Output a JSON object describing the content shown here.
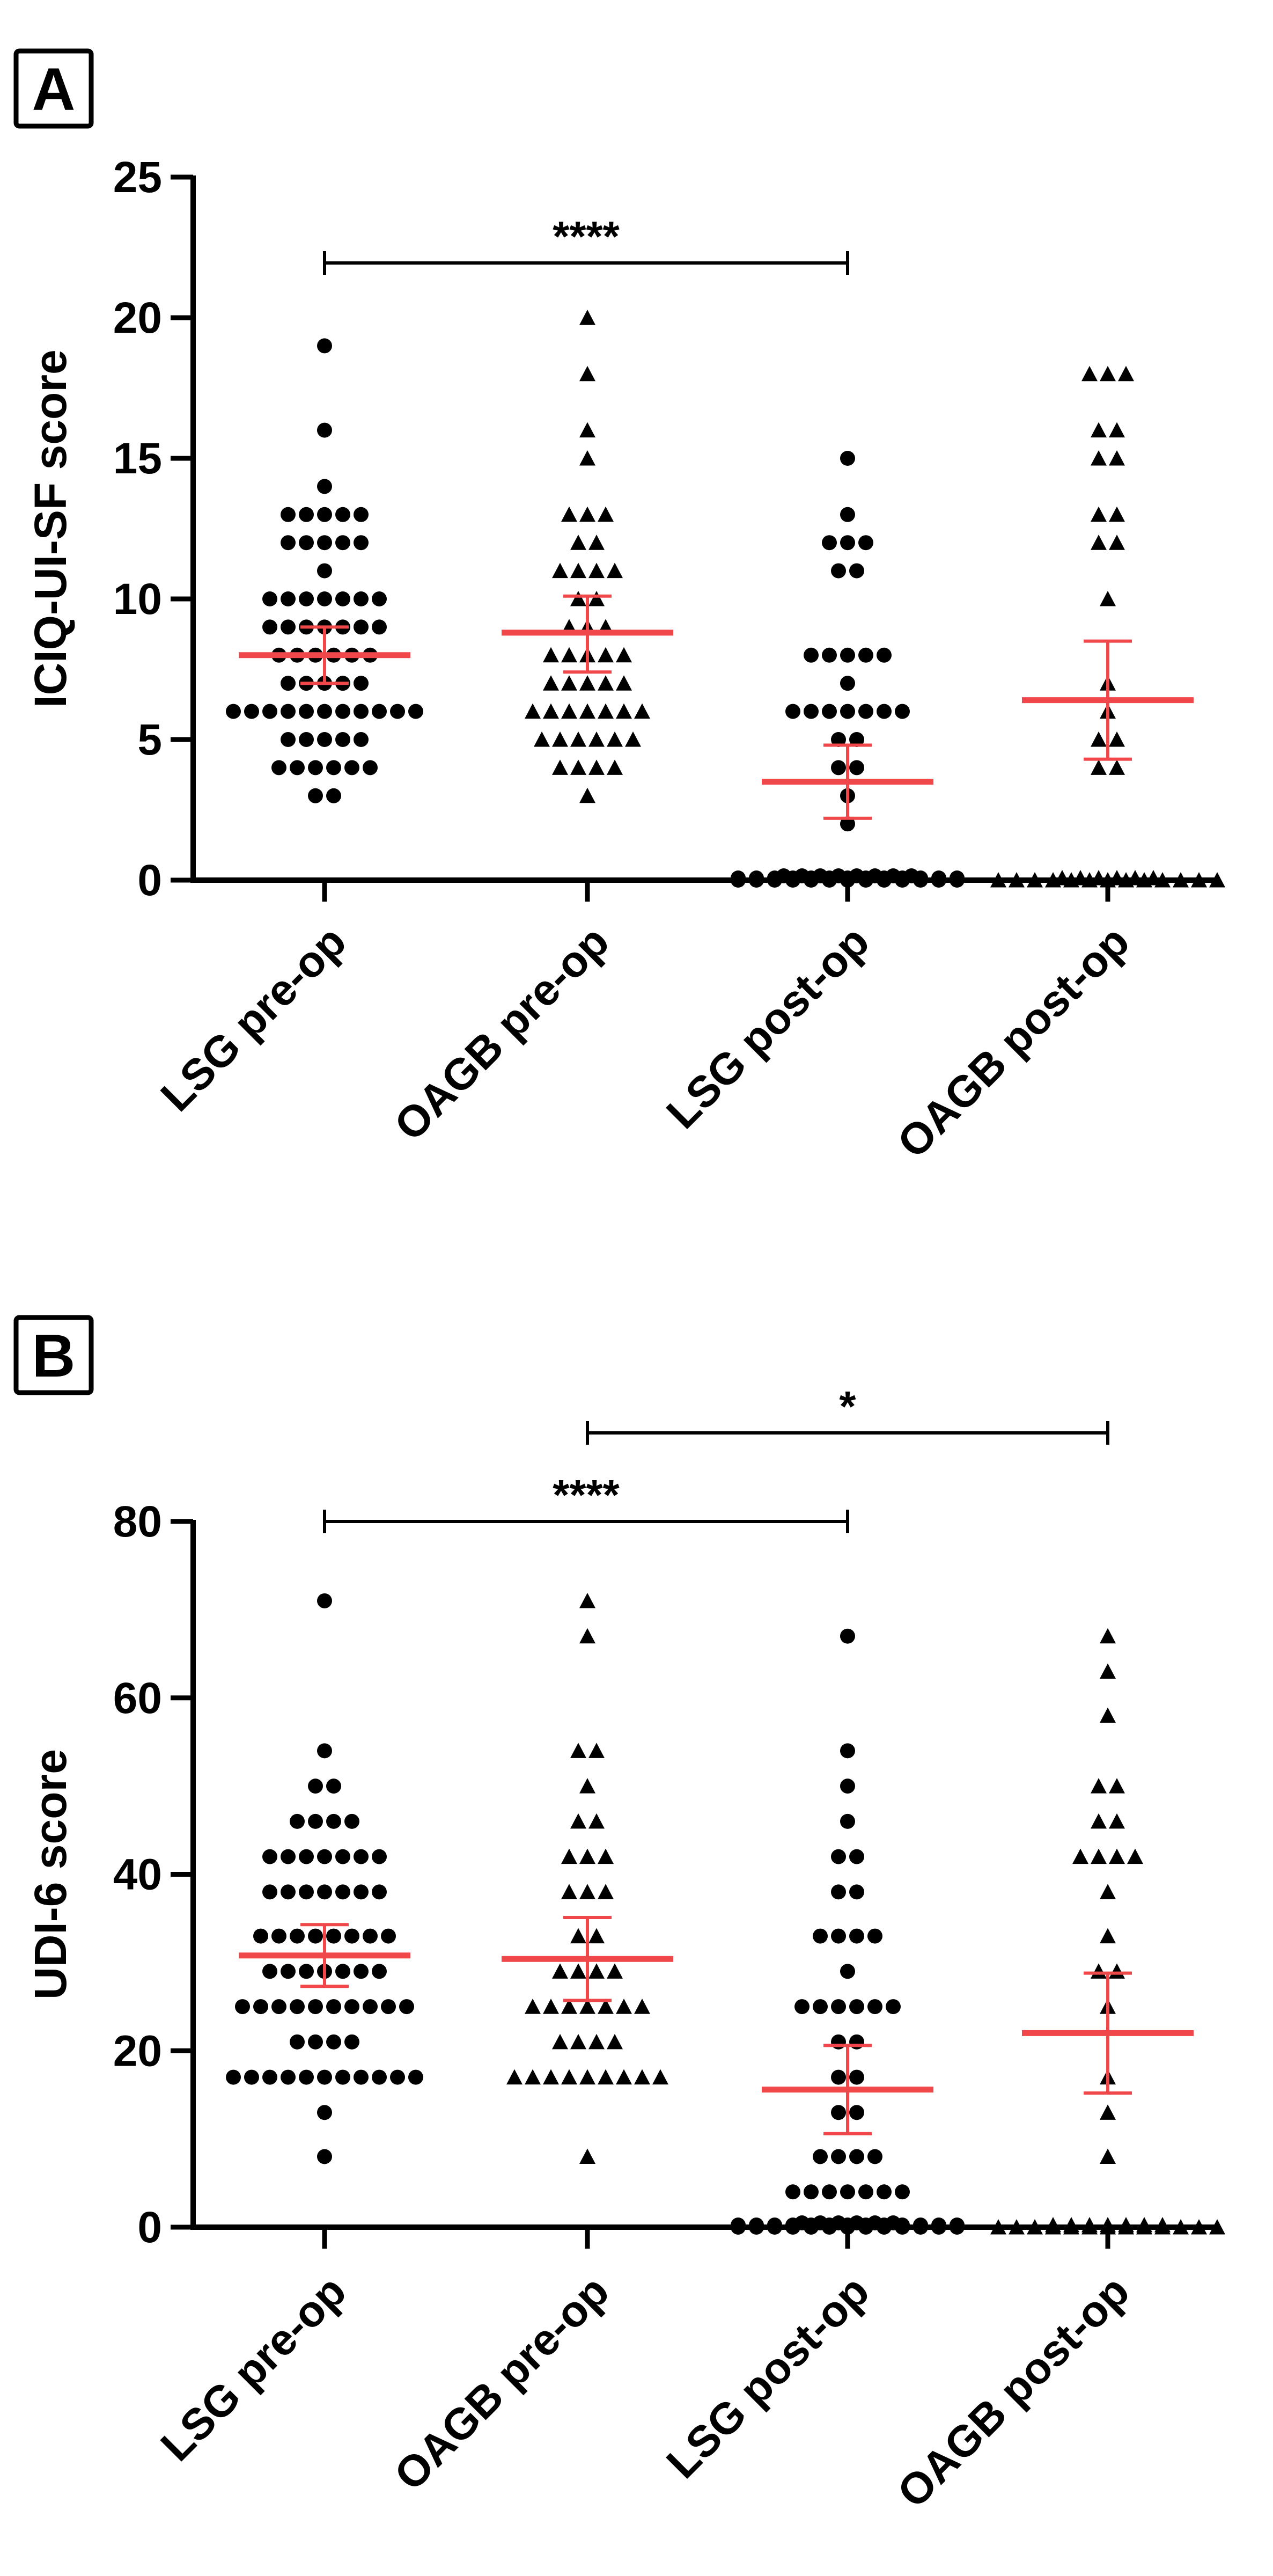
{
  "colors": {
    "axis": "#000000",
    "points": "#000000",
    "mean_sd": "#f0484a",
    "bracket": "#000000"
  },
  "chart_data": [
    {
      "panel_label": "A",
      "type": "scatter",
      "ylabel": "ICIQ-UI-SF score",
      "ylim": [
        0,
        25
      ],
      "yticks": [
        0,
        5,
        10,
        15,
        20,
        25
      ],
      "categories": [
        "LSG pre-op",
        "OAGB pre-op",
        "LSG post-op",
        "OAGB post-op"
      ],
      "groups": [
        {
          "name": "LSG pre-op",
          "marker": "circle",
          "mean": 8.0,
          "ci_low": 7.0,
          "ci_high": 9.0,
          "values": [
            3,
            3,
            4,
            4,
            4,
            4,
            4,
            4,
            5,
            5,
            5,
            5,
            5,
            6,
            6,
            6,
            6,
            6,
            6,
            6,
            6,
            6,
            6,
            6,
            7,
            7,
            7,
            7,
            7,
            8,
            8,
            8,
            8,
            8,
            8,
            9,
            9,
            9,
            9,
            9,
            9,
            9,
            10,
            10,
            10,
            10,
            10,
            10,
            10,
            11,
            12,
            12,
            12,
            12,
            12,
            13,
            13,
            13,
            13,
            13,
            14,
            16,
            19
          ]
        },
        {
          "name": "OAGB pre-op",
          "marker": "triangle",
          "mean": 8.8,
          "ci_low": 7.4,
          "ci_high": 10.1,
          "values": [
            3,
            4,
            4,
            4,
            4,
            5,
            5,
            5,
            5,
            5,
            5,
            6,
            6,
            6,
            6,
            6,
            6,
            6,
            7,
            7,
            7,
            7,
            7,
            8,
            8,
            8,
            8,
            8,
            9,
            9,
            9,
            10,
            10,
            11,
            11,
            11,
            11,
            12,
            12,
            13,
            13,
            13,
            15,
            16,
            18,
            20
          ]
        },
        {
          "name": "LSG post-op",
          "marker": "circle",
          "mean": 3.5,
          "ci_low": 2.2,
          "ci_high": 4.8,
          "values": [
            0,
            0,
            0,
            0,
            0,
            0,
            0,
            0,
            0,
            0,
            0,
            0,
            0,
            0,
            0,
            0,
            0,
            0,
            0,
            0,
            0,
            0,
            0,
            0,
            0,
            0,
            0,
            0,
            0,
            0,
            0,
            0,
            0,
            0,
            2,
            3,
            4,
            4,
            5,
            5,
            6,
            6,
            6,
            6,
            6,
            6,
            6,
            7,
            8,
            8,
            8,
            8,
            8,
            11,
            11,
            12,
            12,
            12,
            13,
            15
          ]
        },
        {
          "name": "OAGB post-op",
          "marker": "triangle",
          "mean": 6.4,
          "ci_low": 4.3,
          "ci_high": 8.5,
          "values": [
            0,
            0,
            0,
            0,
            0,
            0,
            0,
            0,
            0,
            0,
            0,
            0,
            0,
            0,
            0,
            0,
            0,
            0,
            0,
            4,
            4,
            5,
            5,
            6,
            7,
            10,
            12,
            12,
            13,
            13,
            15,
            15,
            16,
            16,
            18,
            18,
            18
          ]
        }
      ],
      "significance": [
        {
          "from": 0,
          "to": 2,
          "label": "****"
        }
      ]
    },
    {
      "panel_label": "B",
      "type": "scatter",
      "ylabel": "UDI-6 score",
      "ylim": [
        0,
        80
      ],
      "yticks": [
        0,
        20,
        40,
        60,
        80
      ],
      "categories": [
        "LSG pre-op",
        "OAGB pre-op",
        "LSG post-op",
        "OAGB post-op"
      ],
      "groups": [
        {
          "name": "LSG pre-op",
          "marker": "circle",
          "mean": 30.8,
          "ci_low": 27.3,
          "ci_high": 34.3,
          "values": [
            8,
            13,
            17,
            17,
            17,
            17,
            17,
            17,
            17,
            17,
            17,
            17,
            17,
            21,
            21,
            21,
            21,
            25,
            25,
            25,
            25,
            25,
            25,
            25,
            25,
            25,
            25,
            29,
            29,
            29,
            29,
            29,
            29,
            29,
            33,
            33,
            33,
            33,
            33,
            33,
            33,
            33,
            38,
            38,
            38,
            38,
            38,
            38,
            38,
            42,
            42,
            42,
            42,
            42,
            42,
            42,
            46,
            46,
            46,
            46,
            50,
            50,
            54,
            71
          ]
        },
        {
          "name": "OAGB pre-op",
          "marker": "triangle",
          "mean": 30.4,
          "ci_low": 25.7,
          "ci_high": 35.1,
          "values": [
            8,
            17,
            17,
            17,
            17,
            17,
            17,
            17,
            17,
            17,
            21,
            21,
            21,
            21,
            25,
            25,
            25,
            25,
            25,
            25,
            25,
            29,
            29,
            29,
            29,
            33,
            33,
            38,
            38,
            38,
            42,
            42,
            42,
            46,
            46,
            50,
            54,
            54,
            67,
            71
          ]
        },
        {
          "name": "LSG post-op",
          "marker": "circle",
          "mean": 15.6,
          "ci_low": 10.6,
          "ci_high": 20.6,
          "values": [
            0,
            0,
            0,
            0,
            0,
            0,
            0,
            0,
            0,
            0,
            0,
            0,
            0,
            0,
            0,
            0,
            0,
            0,
            0,
            0,
            0,
            0,
            0,
            0,
            0,
            0,
            0,
            0,
            0,
            0,
            0,
            0,
            4,
            4,
            4,
            4,
            4,
            4,
            4,
            8,
            8,
            8,
            8,
            13,
            13,
            17,
            17,
            21,
            21,
            25,
            25,
            25,
            25,
            25,
            25,
            29,
            33,
            33,
            33,
            33,
            38,
            38,
            42,
            42,
            46,
            50,
            54,
            67
          ]
        },
        {
          "name": "OAGB post-op",
          "marker": "triangle",
          "mean": 22.0,
          "ci_low": 15.2,
          "ci_high": 28.8,
          "values": [
            0,
            0,
            0,
            0,
            0,
            0,
            0,
            0,
            0,
            0,
            0,
            0,
            0,
            0,
            0,
            0,
            0,
            0,
            0,
            0,
            8,
            13,
            17,
            25,
            29,
            29,
            33,
            38,
            42,
            42,
            42,
            42,
            46,
            46,
            50,
            50,
            58,
            63,
            67
          ]
        }
      ],
      "significance": [
        {
          "from": 0,
          "to": 2,
          "label": "****"
        },
        {
          "from": 1,
          "to": 3,
          "label": "*"
        }
      ]
    }
  ]
}
